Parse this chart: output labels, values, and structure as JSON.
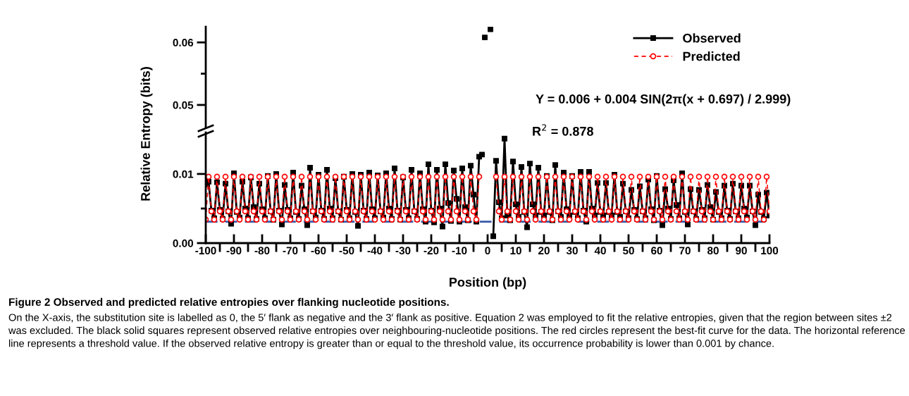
{
  "chart_data": [
    {
      "type": "scatter",
      "tick_labels": "y",
      "xlim": [
        -100,
        100
      ],
      "ylim": [
        0.0465,
        0.0625
      ],
      "yticks": [
        0.05,
        {
          "value": 0.055,
          "label": null
        },
        0.06
      ],
      "series": [
        {
          "color": "#000000",
          "marker": "square",
          "x": [
            -1,
            1
          ],
          "values": [
            0.0608,
            0.0621
          ]
        }
      ],
      "annotations": [
        "Y = 0.006 + 0.004 SIN(2π(x + 0.697) / 2.999)",
        "R$^{2}$ = 0.878"
      ]
    },
    {
      "type": "line",
      "legend": "top right",
      "title": "Figure 2 Observed and predicted relative entropies over flanking nucleotide positions.",
      "xlabel": "Position (bp)",
      "ylabel": "Relative Entropy (bits)",
      "xlim": [
        -100,
        100
      ],
      "ylim": [
        0,
        0.016
      ],
      "xticks": [
        -100,
        {
          "value": -95,
          "label": null
        },
        -90,
        {
          "value": -85,
          "label": null
        },
        -80,
        {
          "value": -75,
          "label": null
        },
        -70,
        {
          "value": -65,
          "label": null
        },
        -60,
        {
          "value": -55,
          "label": null
        },
        -50,
        {
          "value": -45,
          "label": null
        },
        -40,
        {
          "value": -35,
          "label": null
        },
        -30,
        {
          "value": -25,
          "label": null
        },
        -20,
        {
          "value": -15,
          "label": null
        },
        -10,
        {
          "value": -5,
          "label": null
        },
        0,
        {
          "value": 5,
          "label": null
        },
        10,
        {
          "value": 15,
          "label": null
        },
        20,
        {
          "value": 25,
          "label": null
        },
        30,
        {
          "value": 35,
          "label": null
        },
        40,
        {
          "value": 45,
          "label": null
        },
        50,
        {
          "value": 55,
          "label": null
        },
        60,
        {
          "value": 65,
          "label": null
        },
        70,
        {
          "value": 75,
          "label": null
        },
        80,
        {
          "value": 85,
          "label": null
        },
        90,
        {
          "value": 95,
          "label": null
        },
        100
      ],
      "yticks": [
        {
          "value": 0,
          "label": "0.00"
        },
        {
          "value": 0.005,
          "label": null
        },
        {
          "value": 0.01,
          "label": "0.01"
        }
      ],
      "x": [
        -100,
        -99,
        -98,
        -97,
        -96,
        -95,
        -94,
        -93,
        -92,
        -91,
        -90,
        -89,
        -88,
        -87,
        -86,
        -85,
        -84,
        -83,
        -82,
        -81,
        -80,
        -79,
        -78,
        -77,
        -76,
        -75,
        -74,
        -73,
        -72,
        -71,
        -70,
        -69,
        -68,
        -67,
        -66,
        -65,
        -64,
        -63,
        -62,
        -61,
        -60,
        -59,
        -58,
        -57,
        -56,
        -55,
        -54,
        -53,
        -52,
        -51,
        -50,
        -49,
        -48,
        -47,
        -46,
        -45,
        -44,
        -43,
        -42,
        -41,
        -40,
        -39,
        -38,
        -37,
        -36,
        -35,
        -34,
        -33,
        -32,
        -31,
        -30,
        -29,
        -28,
        -27,
        -26,
        -25,
        -24,
        -23,
        -22,
        -21,
        -20,
        -19,
        -18,
        -17,
        -16,
        -15,
        -14,
        -13,
        -12,
        -11,
        -10,
        -9,
        -8,
        -7,
        -6,
        -5,
        -4,
        -3,
        -2,
        -1,
        0,
        1,
        2,
        3,
        4,
        5,
        6,
        7,
        8,
        9,
        10,
        11,
        12,
        13,
        14,
        15,
        16,
        17,
        18,
        19,
        20,
        21,
        22,
        23,
        24,
        25,
        26,
        27,
        28,
        29,
        30,
        31,
        32,
        33,
        34,
        35,
        36,
        37,
        38,
        39,
        40,
        41,
        42,
        43,
        44,
        45,
        46,
        47,
        48,
        49,
        50,
        51,
        52,
        53,
        54,
        55,
        56,
        57,
        58,
        59,
        60,
        61,
        62,
        63,
        64,
        65,
        66,
        67,
        68,
        69,
        70,
        71,
        72,
        73,
        74,
        75,
        76,
        77,
        78,
        79,
        80,
        81,
        82,
        83,
        84,
        85,
        86,
        87,
        88,
        89,
        90,
        91,
        92,
        93,
        94,
        95,
        96,
        97,
        98,
        99,
        100
      ],
      "series": [
        {
          "name": "Observed",
          "color": "#000000",
          "marker": "square",
          "line_style": "solid",
          "values": [
            0.0085,
            0.0089,
            0.0047,
            0.0036,
            0.0088,
            0.0048,
            0.0035,
            0.0086,
            0.0046,
            0.0028,
            0.0101,
            0.0045,
            0.0037,
            0.0089,
            0.005,
            0.0036,
            0.0095,
            0.0052,
            0.0035,
            0.0086,
            0.0049,
            0.0036,
            0.0097,
            0.0046,
            0.0034,
            0.01,
            0.0047,
            0.0027,
            0.0084,
            0.0048,
            0.0036,
            0.0102,
            0.0045,
            0.0035,
            0.0083,
            0.0049,
            0.0026,
            0.0109,
            0.0046,
            0.0037,
            0.0099,
            0.0047,
            0.0035,
            0.0106,
            0.005,
            0.0036,
            0.0094,
            0.0046,
            0.0034,
            0.0096,
            0.0048,
            0.0036,
            0.01,
            0.0045,
            0.0025,
            0.0099,
            0.0047,
            0.0035,
            0.0102,
            0.0049,
            0.0036,
            0.0098,
            0.0046,
            0.0037,
            0.0101,
            0.005,
            0.0035,
            0.0108,
            0.0047,
            0.0034,
            0.0095,
            0.0048,
            0.0036,
            0.0106,
            0.0046,
            0.0035,
            0.0101,
            0.0049,
            0.0031,
            0.0114,
            0.0047,
            0.003,
            0.0106,
            0.005,
            0.0024,
            0.0114,
            0.0058,
            0.0032,
            0.0105,
            0.0064,
            0.0031,
            0.0108,
            0.0052,
            0.0033,
            0.0112,
            0.007,
            0.0031,
            0.0125,
            0.0128,
            null,
            null,
            null,
            0.001,
            0.0119,
            0.0059,
            0.0036,
            0.0151,
            0.004,
            0.0033,
            0.0118,
            0.0056,
            0.0038,
            0.011,
            0.0045,
            0.0023,
            0.0115,
            0.0056,
            0.004,
            0.0109,
            0.0045,
            0.004,
            0.0097,
            0.0045,
            0.0033,
            0.0113,
            0.0046,
            0.0038,
            0.0102,
            0.0049,
            0.004,
            0.0097,
            0.0045,
            0.0036,
            0.0103,
            0.0047,
            0.0031,
            0.0103,
            0.005,
            0.004,
            0.0087,
            0.0045,
            0.004,
            0.0087,
            0.0045,
            0.004,
            0.0099,
            0.0045,
            0.0038,
            0.0086,
            0.0046,
            0.0036,
            0.0077,
            0.0048,
            0.0035,
            0.0082,
            0.0046,
            0.0036,
            0.0092,
            0.0049,
            0.0033,
            0.0097,
            0.0047,
            0.0026,
            0.0078,
            0.005,
            0.0035,
            0.0091,
            0.0055,
            0.0036,
            0.0101,
            0.0045,
            0.0027,
            0.0078,
            0.0046,
            0.0035,
            0.0077,
            0.0048,
            0.0036,
            0.0084,
            0.0052,
            0.0034,
            0.0074,
            0.0045,
            0.0036,
            0.0083,
            0.0047,
            0.0035,
            0.0086,
            0.0046,
            0.0036,
            0.0083,
            0.005,
            0.0037,
            0.0083,
            0.0046,
            0.0026,
            0.007,
            0.0045,
            0.0035,
            0.0073,
            0.004
          ]
        },
        {
          "name": "Predicted",
          "color": "#ff0000",
          "marker": "circle",
          "line_style": "dashed",
          "values": [
            0.0034,
            0.0096,
            0.0046,
            0.0034,
            0.0096,
            0.0046,
            0.0034,
            0.0096,
            0.0046,
            0.0034,
            0.0096,
            0.0046,
            0.0034,
            0.0096,
            0.0046,
            0.0034,
            0.0096,
            0.0046,
            0.0034,
            0.0096,
            0.0046,
            0.0034,
            0.0096,
            0.0046,
            0.0034,
            0.0096,
            0.0046,
            0.0034,
            0.0096,
            0.0046,
            0.0034,
            0.0096,
            0.0046,
            0.0034,
            0.0096,
            0.0046,
            0.0034,
            0.0096,
            0.0046,
            0.0034,
            0.0096,
            0.0046,
            0.0034,
            0.0096,
            0.0046,
            0.0034,
            0.0096,
            0.0046,
            0.0034,
            0.0096,
            0.0046,
            0.0034,
            0.0096,
            0.0046,
            0.0034,
            0.0096,
            0.0046,
            0.0034,
            0.0096,
            0.0046,
            0.0034,
            0.0096,
            0.0046,
            0.0034,
            0.0096,
            0.0046,
            0.0034,
            0.0096,
            0.0046,
            0.0034,
            0.0096,
            0.0046,
            0.0034,
            0.0096,
            0.0046,
            0.0034,
            0.0096,
            0.0046,
            0.0034,
            0.0096,
            0.0046,
            0.0034,
            0.0096,
            0.0046,
            0.0034,
            0.0096,
            0.0046,
            0.0034,
            0.0096,
            0.0046,
            0.0034,
            0.0096,
            0.0046,
            0.0034,
            0.0096,
            0.0046,
            0.0034,
            0.0096,
            null,
            null,
            null,
            null,
            null,
            0.0096,
            0.0046,
            0.0034,
            0.0096,
            0.0046,
            0.0034,
            0.0096,
            0.0046,
            0.0034,
            0.0096,
            0.0046,
            0.0034,
            0.0096,
            0.0046,
            0.0034,
            0.0096,
            0.0046,
            0.0034,
            0.0096,
            0.0046,
            0.0034,
            0.0096,
            0.0046,
            0.0034,
            0.0096,
            0.0046,
            0.0034,
            0.0096,
            0.0046,
            0.0034,
            0.0096,
            0.0046,
            0.0034,
            0.0096,
            0.0046,
            0.0034,
            0.0096,
            0.0046,
            0.0034,
            0.0096,
            0.0046,
            0.0034,
            0.0096,
            0.0046,
            0.0034,
            0.0096,
            0.0046,
            0.0034,
            0.0096,
            0.0046,
            0.0034,
            0.0096,
            0.0046,
            0.0034,
            0.0096,
            0.0046,
            0.0034,
            0.0096,
            0.0046,
            0.0034,
            0.0096,
            0.0046,
            0.0034,
            0.0096,
            0.0046,
            0.0034,
            0.0096,
            0.0046,
            0.0034,
            0.0096,
            0.0046,
            0.0034,
            0.0096,
            0.0046,
            0.0034,
            0.0096,
            0.0046,
            0.0034,
            0.0096,
            0.0046,
            0.0034,
            0.0096,
            0.0046,
            0.0034,
            0.0096,
            0.0046,
            0.0034,
            0.0096,
            0.0046,
            0.0034,
            0.0096,
            0.0046,
            0.0034,
            0.0096,
            0.0046,
            0.0034,
            0.0096,
            0.0046
          ]
        }
      ],
      "ref_lines": [
        {
          "axis": "y",
          "value": 0.0031,
          "color": "#3a5aa8",
          "line_style": "dashed"
        }
      ],
      "annotations": [
        "On the X-axis, the substitution site is labelled as 0, the 5′ flank as negative and the 3′ flank as positive. Equation 2 was employed to fit the relative entropies, given that the region between sites ±2 was excluded. The black solid squares represent observed relative entropies over neighbouring-nucleotide positions. The red circles represent the best-fit curve for the data. The horizontal reference line represents a threshold value. If the observed relative entropy is greater than or equal to the threshold value, its occurrence probability is lower than 0.001 by chance."
      ]
    }
  ]
}
